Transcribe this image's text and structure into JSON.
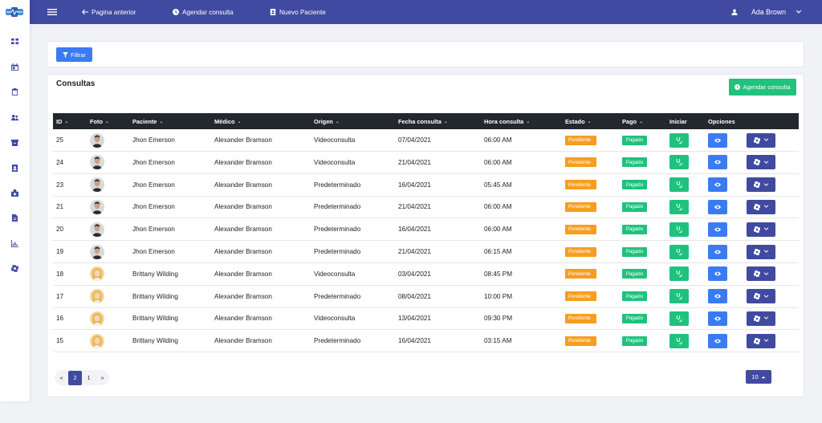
{
  "topbar": {
    "back_label": "Pagina anterior",
    "schedule_label": "Agendar consulta",
    "new_patient_label": "Nuevo Paciente",
    "user_name": "Ada Brown"
  },
  "filter": {
    "button_label": "Filtrar"
  },
  "consultas": {
    "title": "Consultas",
    "add_button_label": "Agendar consulta",
    "columns": [
      "ID",
      "Foto",
      "Paciente",
      "Médico",
      "Origen",
      "Fecha consulta",
      "Hora consulta",
      "Estado",
      "Pago",
      "Iniciar",
      "Opciones"
    ],
    "rows": [
      {
        "id": "25",
        "paciente": "Jhon Emerson",
        "medico": "Alexander Bramson",
        "origen": "Videoconsulta",
        "fecha": "07/04/2021",
        "hora": "06:00 AM",
        "estado": "Pendiente",
        "pago": "Pagado",
        "avatar": "male"
      },
      {
        "id": "24",
        "paciente": "Jhon Emerson",
        "medico": "Alexander Bramson",
        "origen": "Videoconsulta",
        "fecha": "21/04/2021",
        "hora": "06:00 AM",
        "estado": "Pendiente",
        "pago": "Pagado",
        "avatar": "male"
      },
      {
        "id": "23",
        "paciente": "Jhon Emerson",
        "medico": "Alexander Bramson",
        "origen": "Predeterminado",
        "fecha": "16/04/2021",
        "hora": "05:45 AM",
        "estado": "Pendiente",
        "pago": "Pagado",
        "avatar": "male"
      },
      {
        "id": "21",
        "paciente": "Jhon Emerson",
        "medico": "Alexander Bramson",
        "origen": "Predeterminado",
        "fecha": "21/04/2021",
        "hora": "06:00 AM",
        "estado": "Pendiente",
        "pago": "Pagado",
        "avatar": "male"
      },
      {
        "id": "20",
        "paciente": "Jhon Emerson",
        "medico": "Alexander Bramson",
        "origen": "Predeterminado",
        "fecha": "16/04/2021",
        "hora": "06:00 AM",
        "estado": "Pendiente",
        "pago": "Pagado",
        "avatar": "male"
      },
      {
        "id": "19",
        "paciente": "Jhon Emerson",
        "medico": "Alexander Bramson",
        "origen": "Predeterminado",
        "fecha": "21/04/2021",
        "hora": "06:15 AM",
        "estado": "Pendiente",
        "pago": "Pagado",
        "avatar": "male"
      },
      {
        "id": "18",
        "paciente": "Brittany Wilding",
        "medico": "Alexander Bramson",
        "origen": "Videoconsulta",
        "fecha": "03/04/2021",
        "hora": "08:45 PM",
        "estado": "Pendiente",
        "pago": "Pagado",
        "avatar": "female"
      },
      {
        "id": "17",
        "paciente": "Brittany Wilding",
        "medico": "Alexander Bramson",
        "origen": "Predeterminado",
        "fecha": "08/04/2021",
        "hora": "10:00 PM",
        "estado": "Pendiente",
        "pago": "Pagado",
        "avatar": "female"
      },
      {
        "id": "16",
        "paciente": "Brittany Wilding",
        "medico": "Alexander Bramson",
        "origen": "Videoconsulta",
        "fecha": "13/04/2021",
        "hora": "09:30 PM",
        "estado": "Pendiente",
        "pago": "Pagado",
        "avatar": "female"
      },
      {
        "id": "15",
        "paciente": "Brittany Wilding",
        "medico": "Alexander Bramson",
        "origen": "Predeterminado",
        "fecha": "16/04/2021",
        "hora": "03:15 AM",
        "estado": "Pendiente",
        "pago": "Pagado",
        "avatar": "female"
      }
    ]
  },
  "pagination": {
    "prev": "«",
    "pages": [
      "2",
      "1"
    ],
    "next": "»",
    "per_page": "10"
  },
  "colors": {
    "primary": "#3f4aa0",
    "blue": "#3a7bf4",
    "green": "#1fc27d",
    "orange": "#f59e20",
    "header_dark": "#23272e"
  },
  "sidebar_icons": [
    "dashboard-icon",
    "calendar-icon",
    "clipboard-icon",
    "users-icon",
    "archive-icon",
    "id-card-icon",
    "hospital-icon",
    "document-icon",
    "chart-icon",
    "gear-icon"
  ]
}
